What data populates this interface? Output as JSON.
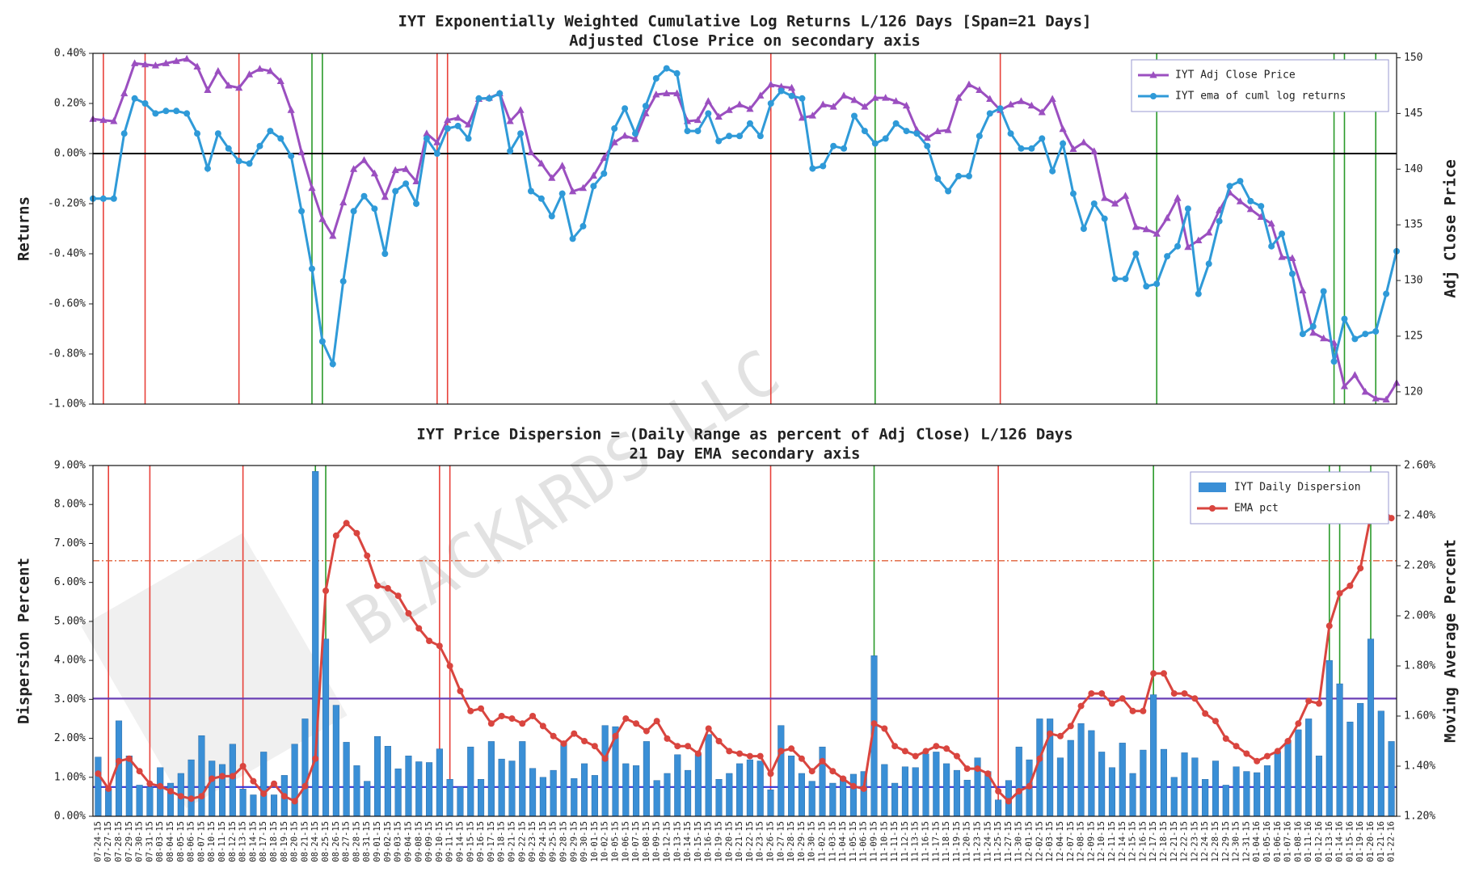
{
  "watermark": "BLACKARDS LLC",
  "events": [
    {
      "date": "07-27-15",
      "color": "#e8413a"
    },
    {
      "date": "07-31-15",
      "color": "#e8413a"
    },
    {
      "date": "08-13-15",
      "color": "#e8413a"
    },
    {
      "date": "09-10-15",
      "color": "#e8413a"
    },
    {
      "date": "09-11-15",
      "color": "#e8413a"
    },
    {
      "date": "10-26-15",
      "color": "#e8413a"
    },
    {
      "date": "11-25-15",
      "color": "#e8413a"
    },
    {
      "date": "08-24-15",
      "color": "#2a9a2a"
    },
    {
      "date": "08-25-15",
      "color": "#2a9a2a"
    },
    {
      "date": "11-09-15",
      "color": "#2a9a2a"
    },
    {
      "date": "12-17-15",
      "color": "#2a9a2a"
    },
    {
      "date": "01-13-16",
      "color": "#2a9a2a"
    },
    {
      "date": "01-14-16",
      "color": "#2a9a2a"
    },
    {
      "date": "01-20-16",
      "color": "#2a9a2a"
    }
  ],
  "chart_data": [
    {
      "type": "line",
      "title": "IYT Exponentially Weighted Cumulative Log Returns L/126 Days [Span=21 Days]",
      "subtitle": "Adjusted Close Price on secondary axis",
      "y_label": "Returns",
      "y2_label": "Adj Close Price",
      "ylim": [
        -1.0,
        0.4
      ],
      "yticks": [
        {
          "value": -1.0,
          "label": "-1.00%"
        },
        {
          "value": -0.8,
          "label": "-0.80%"
        },
        {
          "value": -0.6,
          "label": "-0.60%"
        },
        {
          "value": -0.4,
          "label": "-0.40%"
        },
        {
          "value": -0.2,
          "label": "-0.20%"
        },
        {
          "value": 0,
          "label": "0.00%"
        },
        {
          "value": 0.2,
          "label": "0.20%"
        },
        {
          "value": 0.4,
          "label": "0.40%"
        }
      ],
      "y2lim": [
        118.9,
        150.4
      ],
      "y2ticks": [
        120,
        125,
        130,
        135,
        140,
        145,
        150
      ],
      "zero_line": true,
      "legend": "upper right",
      "series": [
        {
          "name": "IYT Adj Close Price",
          "color": "#9b4fc0",
          "marker": "triangle",
          "axis": "y2",
          "values": [
            144.5,
            144.4,
            144.3,
            146.8,
            149.5,
            149.4,
            149.3,
            149.5,
            149.7,
            149.9,
            149.2,
            147.1,
            148.8,
            147.5,
            147.3,
            148.5,
            149.0,
            148.8,
            147.9,
            145.3,
            141.5,
            138.3,
            135.5,
            134.0,
            137.0,
            140.0,
            140.8,
            139.6,
            137.5,
            139.9,
            140.0,
            138.9,
            143.2,
            142.4,
            144.4,
            144.6,
            144.0,
            146.3,
            146.4,
            146.8,
            144.3,
            145.3,
            141.5,
            140.5,
            139.2,
            140.3,
            138.0,
            138.3,
            139.4,
            141.0,
            142.4,
            143.0,
            142.7,
            145.0,
            146.7,
            146.8,
            146.8,
            144.3,
            144.4,
            146.1,
            144.7,
            145.3,
            145.8,
            145.4,
            146.6,
            147.6,
            147.4,
            147.3,
            144.6,
            144.8,
            145.8,
            145.6,
            146.6,
            146.2,
            145.6,
            146.4,
            146.4,
            146.1,
            145.7,
            143.5,
            142.8,
            143.4,
            143.5,
            146.4,
            147.6,
            147.1,
            146.3,
            145.3,
            145.8,
            146.1,
            145.7,
            145.1,
            146.3,
            143.6,
            141.8,
            142.4,
            141.6,
            137.4,
            136.9,
            137.6,
            134.8,
            134.6,
            134.2,
            135.6,
            137.4,
            133.0,
            133.6,
            134.3,
            136.3,
            137.9,
            137.1,
            136.4,
            135.7,
            135.1,
            132.1,
            132.0,
            129.1,
            125.3,
            124.8,
            124.4,
            120.5,
            121.5,
            120.0,
            119.4,
            119.3,
            120.8
          ]
        },
        {
          "name": "IYT ema of cuml log returns",
          "color": "#2f9ad8",
          "marker": "circle",
          "axis": "y",
          "values": [
            -0.18,
            -0.18,
            -0.18,
            0.08,
            0.22,
            0.2,
            0.16,
            0.17,
            0.17,
            0.16,
            0.08,
            -0.06,
            0.08,
            0.02,
            -0.03,
            -0.04,
            0.03,
            0.09,
            0.06,
            -0.01,
            -0.23,
            -0.46,
            -0.75,
            -0.84,
            -0.51,
            -0.23,
            -0.17,
            -0.22,
            -0.4,
            -0.15,
            -0.12,
            -0.2,
            0.06,
            0.0,
            0.1,
            0.11,
            0.06,
            0.22,
            0.22,
            0.24,
            0.01,
            0.08,
            -0.15,
            -0.18,
            -0.25,
            -0.16,
            -0.34,
            -0.29,
            -0.13,
            -0.08,
            0.1,
            0.18,
            0.08,
            0.19,
            0.3,
            0.34,
            0.32,
            0.09,
            0.09,
            0.16,
            0.05,
            0.07,
            0.07,
            0.12,
            0.07,
            0.2,
            0.25,
            0.23,
            0.22,
            -0.06,
            -0.05,
            0.03,
            0.02,
            0.15,
            0.09,
            0.04,
            0.06,
            0.12,
            0.09,
            0.08,
            0.03,
            -0.1,
            -0.15,
            -0.09,
            -0.09,
            0.07,
            0.16,
            0.18,
            0.08,
            0.02,
            0.02,
            0.06,
            -0.07,
            0.04,
            -0.16,
            -0.3,
            -0.2,
            -0.26,
            -0.5,
            -0.5,
            -0.4,
            -0.53,
            -0.52,
            -0.41,
            -0.37,
            -0.22,
            -0.56,
            -0.44,
            -0.27,
            -0.13,
            -0.11,
            -0.19,
            -0.21,
            -0.37,
            -0.32,
            -0.48,
            -0.72,
            -0.69,
            -0.55,
            -0.83,
            -0.66,
            -0.74,
            -0.72,
            -0.71,
            -0.56,
            -0.39
          ]
        }
      ]
    },
    {
      "type": "bar",
      "title": "IYT Price Dispersion = (Daily Range as percent of Adj Close) L/126 Days",
      "subtitle": "21 Day EMA secondary axis",
      "y_label": "Dispersion Percent",
      "y2_label": "Moving Average Percent",
      "ylim": [
        0,
        9
      ],
      "yticks": [
        {
          "value": 0,
          "label": "0.00%"
        },
        {
          "value": 1,
          "label": "1.00%"
        },
        {
          "value": 2,
          "label": "2.00%"
        },
        {
          "value": 3,
          "label": "3.00%"
        },
        {
          "value": 4,
          "label": "4.00%"
        },
        {
          "value": 5,
          "label": "5.00%"
        },
        {
          "value": 6,
          "label": "6.00%"
        },
        {
          "value": 7,
          "label": "7.00%"
        },
        {
          "value": 8,
          "label": "8.00%"
        },
        {
          "value": 9,
          "label": "9.00%"
        }
      ],
      "y2lim": [
        1.2,
        2.6
      ],
      "y2ticks": [
        {
          "value": 1.2,
          "label": "1.20%"
        },
        {
          "value": 1.4,
          "label": "1.40%"
        },
        {
          "value": 1.6,
          "label": "1.60%"
        },
        {
          "value": 1.8,
          "label": "1.80%"
        },
        {
          "value": 2.0,
          "label": "2.00%"
        },
        {
          "value": 2.2,
          "label": "2.20%"
        },
        {
          "value": 2.4,
          "label": "2.40%"
        },
        {
          "value": 2.6,
          "label": "2.60%"
        }
      ],
      "legend": "upper right",
      "hlines": [
        {
          "value": 3.02,
          "axis": "y",
          "color": "#6a3fb5",
          "style": "solid"
        },
        {
          "value": 0.75,
          "axis": "y",
          "color": "#3434d8",
          "style": "solid"
        },
        {
          "value": 2.22,
          "axis": "y2",
          "color": "#e0603a",
          "style": "dashdot"
        }
      ],
      "categories": [
        "07-24-15",
        "07-27-15",
        "07-28-15",
        "07-29-15",
        "07-30-15",
        "07-31-15",
        "08-03-15",
        "08-04-15",
        "08-05-15",
        "08-06-15",
        "08-07-15",
        "08-10-15",
        "08-11-15",
        "08-12-15",
        "08-13-15",
        "08-14-15",
        "08-17-15",
        "08-18-15",
        "08-19-15",
        "08-20-15",
        "08-21-15",
        "08-24-15",
        "08-25-15",
        "08-26-15",
        "08-27-15",
        "08-28-15",
        "08-31-15",
        "09-01-15",
        "09-02-15",
        "09-03-15",
        "09-04-15",
        "09-08-15",
        "09-09-15",
        "09-10-15",
        "09-11-15",
        "09-14-15",
        "09-15-15",
        "09-16-15",
        "09-17-15",
        "09-18-15",
        "09-21-15",
        "09-22-15",
        "09-23-15",
        "09-24-15",
        "09-25-15",
        "09-28-15",
        "09-29-15",
        "09-30-15",
        "10-01-15",
        "10-02-15",
        "10-05-15",
        "10-06-15",
        "10-07-15",
        "10-08-15",
        "10-09-15",
        "10-12-15",
        "10-13-15",
        "10-14-15",
        "10-15-15",
        "10-16-15",
        "10-19-15",
        "10-20-15",
        "10-21-15",
        "10-22-15",
        "10-23-15",
        "10-26-15",
        "10-27-15",
        "10-28-15",
        "10-29-15",
        "10-30-15",
        "11-02-15",
        "11-03-15",
        "11-04-15",
        "11-05-15",
        "11-06-15",
        "11-09-15",
        "11-10-15",
        "11-11-15",
        "11-12-15",
        "11-13-15",
        "11-16-15",
        "11-17-15",
        "11-18-15",
        "11-19-15",
        "11-20-15",
        "11-23-15",
        "11-24-15",
        "11-25-15",
        "11-27-15",
        "11-30-15",
        "12-01-15",
        "12-02-15",
        "12-03-15",
        "12-04-15",
        "12-07-15",
        "12-08-15",
        "12-09-15",
        "12-10-15",
        "12-11-15",
        "12-14-15",
        "12-15-15",
        "12-16-15",
        "12-17-15",
        "12-18-15",
        "12-21-15",
        "12-22-15",
        "12-23-15",
        "12-24-15",
        "12-28-15",
        "12-29-15",
        "12-30-15",
        "12-31-15",
        "01-04-16",
        "01-05-16",
        "01-06-16",
        "01-07-16",
        "01-08-16",
        "01-11-16",
        "01-12-16",
        "01-13-16",
        "01-14-16",
        "01-15-16",
        "01-19-16",
        "01-20-16",
        "01-21-16",
        "01-22-16"
      ],
      "series": [
        {
          "name": "IYT Daily Dispersion",
          "color": "#3a8fd6",
          "type": "bar",
          "axis": "y",
          "values": [
            1.52,
            0.7,
            2.45,
            1.55,
            0.8,
            0.75,
            1.25,
            0.85,
            1.1,
            1.45,
            2.07,
            1.42,
            1.33,
            1.85,
            0.7,
            0.55,
            1.65,
            0.55,
            1.05,
            1.85,
            2.5,
            8.85,
            4.55,
            2.85,
            1.9,
            1.3,
            0.9,
            2.05,
            1.8,
            1.22,
            1.55,
            1.4,
            1.38,
            1.73,
            0.95,
            0.75,
            1.78,
            0.95,
            1.92,
            1.47,
            1.42,
            1.92,
            1.23,
            1.0,
            1.18,
            1.9,
            0.97,
            1.35,
            1.05,
            2.33,
            2.3,
            1.35,
            1.3,
            1.92,
            0.92,
            1.1,
            1.58,
            1.18,
            1.6,
            2.1,
            0.95,
            1.1,
            1.35,
            1.45,
            1.42,
            0.68,
            2.33,
            1.55,
            1.1,
            0.9,
            1.78,
            0.85,
            1.0,
            1.08,
            1.15,
            4.12,
            1.33,
            0.85,
            1.27,
            1.25,
            1.6,
            1.65,
            1.35,
            1.18,
            0.93,
            1.5,
            1.15,
            0.42,
            0.92,
            1.78,
            1.45,
            2.5,
            2.5,
            1.5,
            1.95,
            2.38,
            2.2,
            1.65,
            1.25,
            1.88,
            1.1,
            1.7,
            3.12,
            1.72,
            1.0,
            1.63,
            1.5,
            0.95,
            1.42,
            0.8,
            1.27,
            1.15,
            1.12,
            1.3,
            1.65,
            1.95,
            2.22,
            2.5,
            1.55,
            4.0,
            3.4,
            2.42,
            2.9,
            4.55,
            2.7,
            1.92
          ]
        },
        {
          "name": "EMA pct",
          "color": "#d9453f",
          "type": "line",
          "marker": "circle",
          "axis": "y2",
          "values": [
            1.37,
            1.31,
            1.42,
            1.43,
            1.38,
            1.33,
            1.32,
            1.3,
            1.28,
            1.27,
            1.28,
            1.35,
            1.36,
            1.36,
            1.4,
            1.34,
            1.29,
            1.33,
            1.28,
            1.26,
            1.32,
            1.43,
            2.1,
            2.32,
            2.37,
            2.33,
            2.24,
            2.12,
            2.11,
            2.08,
            2.01,
            1.95,
            1.9,
            1.88,
            1.8,
            1.7,
            1.62,
            1.63,
            1.57,
            1.6,
            1.59,
            1.57,
            1.6,
            1.56,
            1.52,
            1.49,
            1.53,
            1.5,
            1.48,
            1.43,
            1.52,
            1.59,
            1.57,
            1.54,
            1.58,
            1.51,
            1.48,
            1.48,
            1.45,
            1.55,
            1.5,
            1.46,
            1.45,
            1.44,
            1.44,
            1.37,
            1.46,
            1.47,
            1.43,
            1.38,
            1.42,
            1.38,
            1.35,
            1.32,
            1.31,
            1.57,
            1.55,
            1.48,
            1.46,
            1.44,
            1.46,
            1.48,
            1.47,
            1.44,
            1.39,
            1.39,
            1.37,
            1.3,
            1.26,
            1.3,
            1.32,
            1.43,
            1.53,
            1.52,
            1.56,
            1.64,
            1.69,
            1.69,
            1.65,
            1.67,
            1.62,
            1.62,
            1.77,
            1.77,
            1.69,
            1.69,
            1.67,
            1.61,
            1.58,
            1.51,
            1.48,
            1.45,
            1.42,
            1.44,
            1.46,
            1.5,
            1.57,
            1.66,
            1.65,
            1.96,
            2.09,
            2.12,
            2.19,
            2.4,
            2.43,
            2.39
          ]
        }
      ]
    }
  ]
}
